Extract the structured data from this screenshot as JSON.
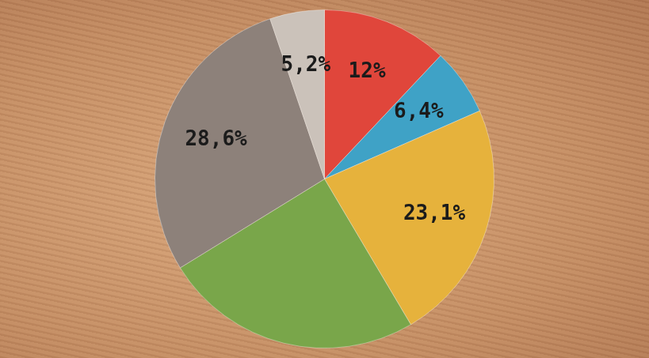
{
  "chart_data": {
    "type": "pie",
    "values": [
      12,
      6.4,
      23.1,
      24.7,
      28.6,
      5.2
    ],
    "value_labels": [
      "12%",
      "6,4%",
      "23,1%",
      null,
      "28,6%",
      "5,2%"
    ],
    "colors": [
      "#e0463b",
      "#3fa2c6",
      "#e6b23c",
      "#79a64a",
      "#8d817a",
      "#cbc2ba"
    ],
    "data_labels": true
  }
}
